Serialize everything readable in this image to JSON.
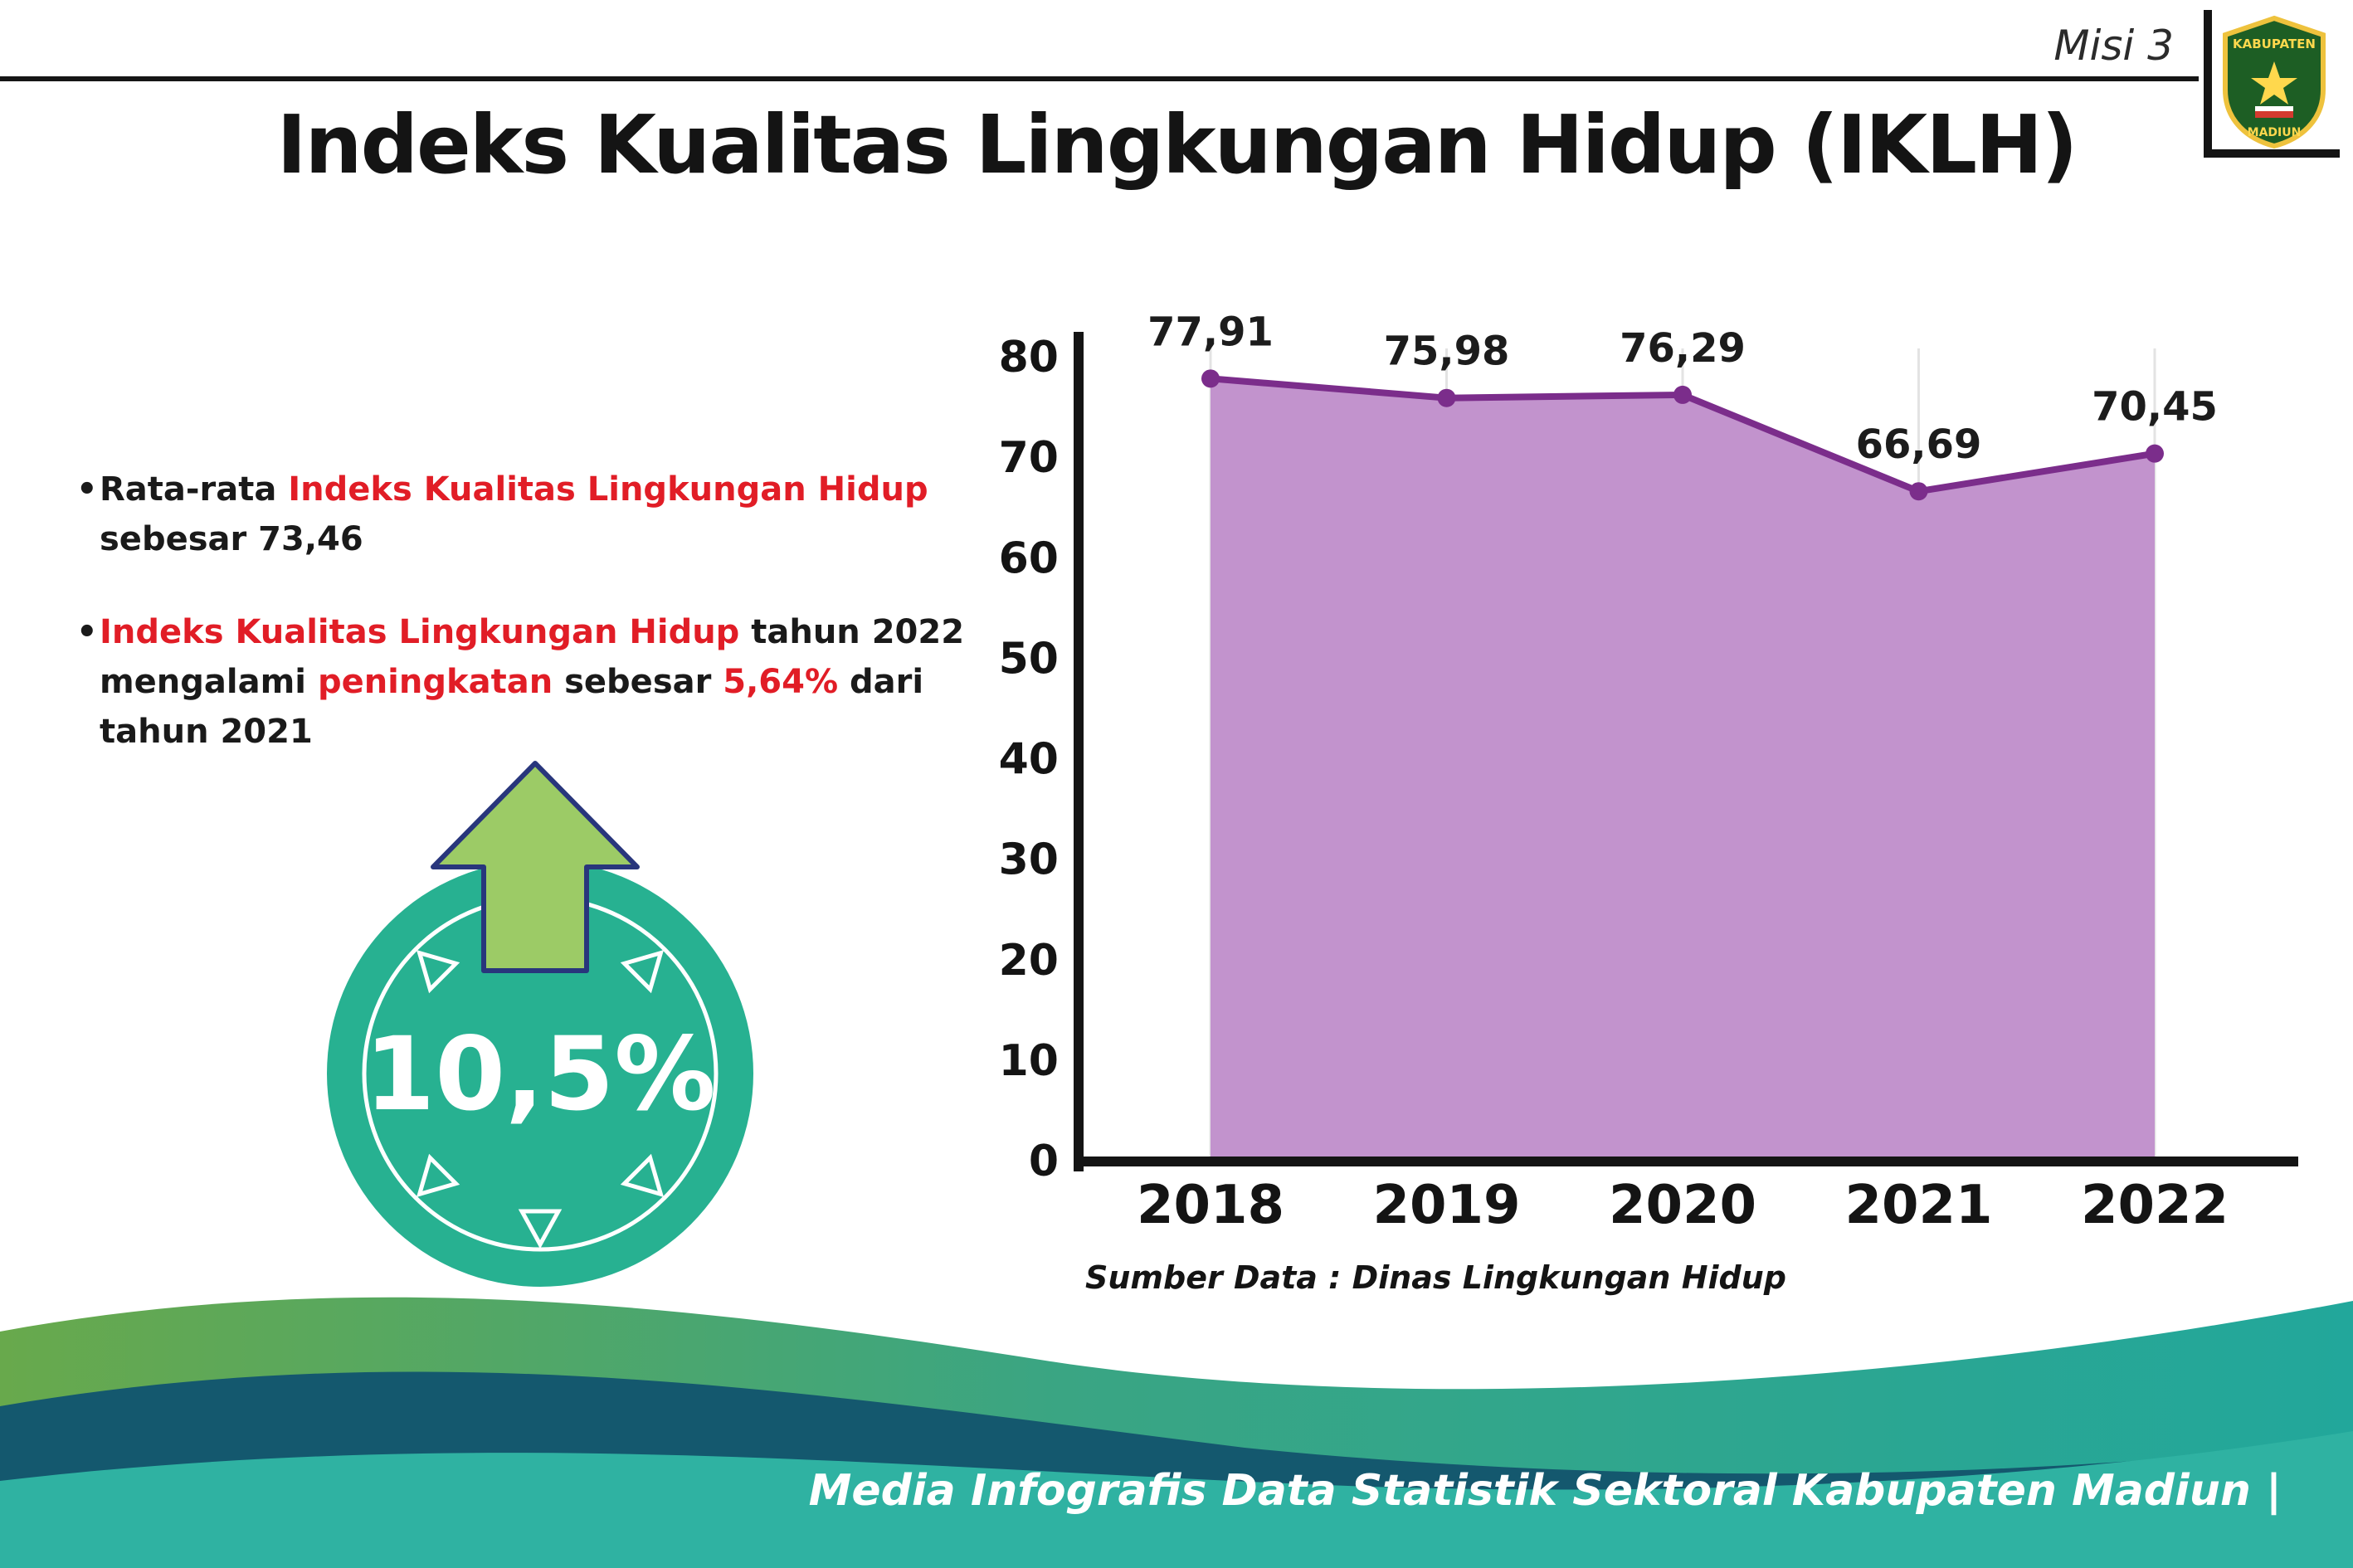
{
  "header": {
    "misi": "Misi 3",
    "title": "Indeks Kualitas Lingkungan Hidup (IKLH)"
  },
  "logo": {
    "line1": "KABUPATEN",
    "line2": "MADIUN"
  },
  "bullets": {
    "marker": "•",
    "b1": {
      "seg1": "Rata-rata ",
      "seg2": "Indeks Kualitas Lingkungan Hidup",
      "seg3": " sebesar 73,46"
    },
    "b2": {
      "seg1": "Indeks Kualitas Lingkungan Hidup",
      "seg2": " tahun 2022 mengalami ",
      "seg3": "peningkatan",
      "seg4": " sebesar ",
      "seg5": "5,64%",
      "seg6": " dari tahun 2021"
    }
  },
  "badge": {
    "value": "10,5%"
  },
  "chart_data": {
    "type": "area",
    "title": "",
    "xlabel": "",
    "ylabel": "",
    "categories": [
      "2018",
      "2019",
      "2020",
      "2021",
      "2022"
    ],
    "values": [
      77.91,
      75.98,
      76.29,
      66.69,
      70.45
    ],
    "labels": [
      "77,91",
      "75,98",
      "76,29",
      "66,69",
      "70,45"
    ],
    "ylim": [
      0,
      80
    ],
    "yticks": [
      0,
      10,
      20,
      30,
      40,
      50,
      60,
      70,
      80
    ],
    "grid": "vertical-light",
    "legend": "none",
    "line_color": "#7b2d8b",
    "fill_color": "#c293cd",
    "source": "Sumber Data : Dinas Lingkungan Hidup"
  },
  "footer": {
    "text": "Media Infografis Data Statistik Sektoral Kabupaten Madiun |"
  }
}
